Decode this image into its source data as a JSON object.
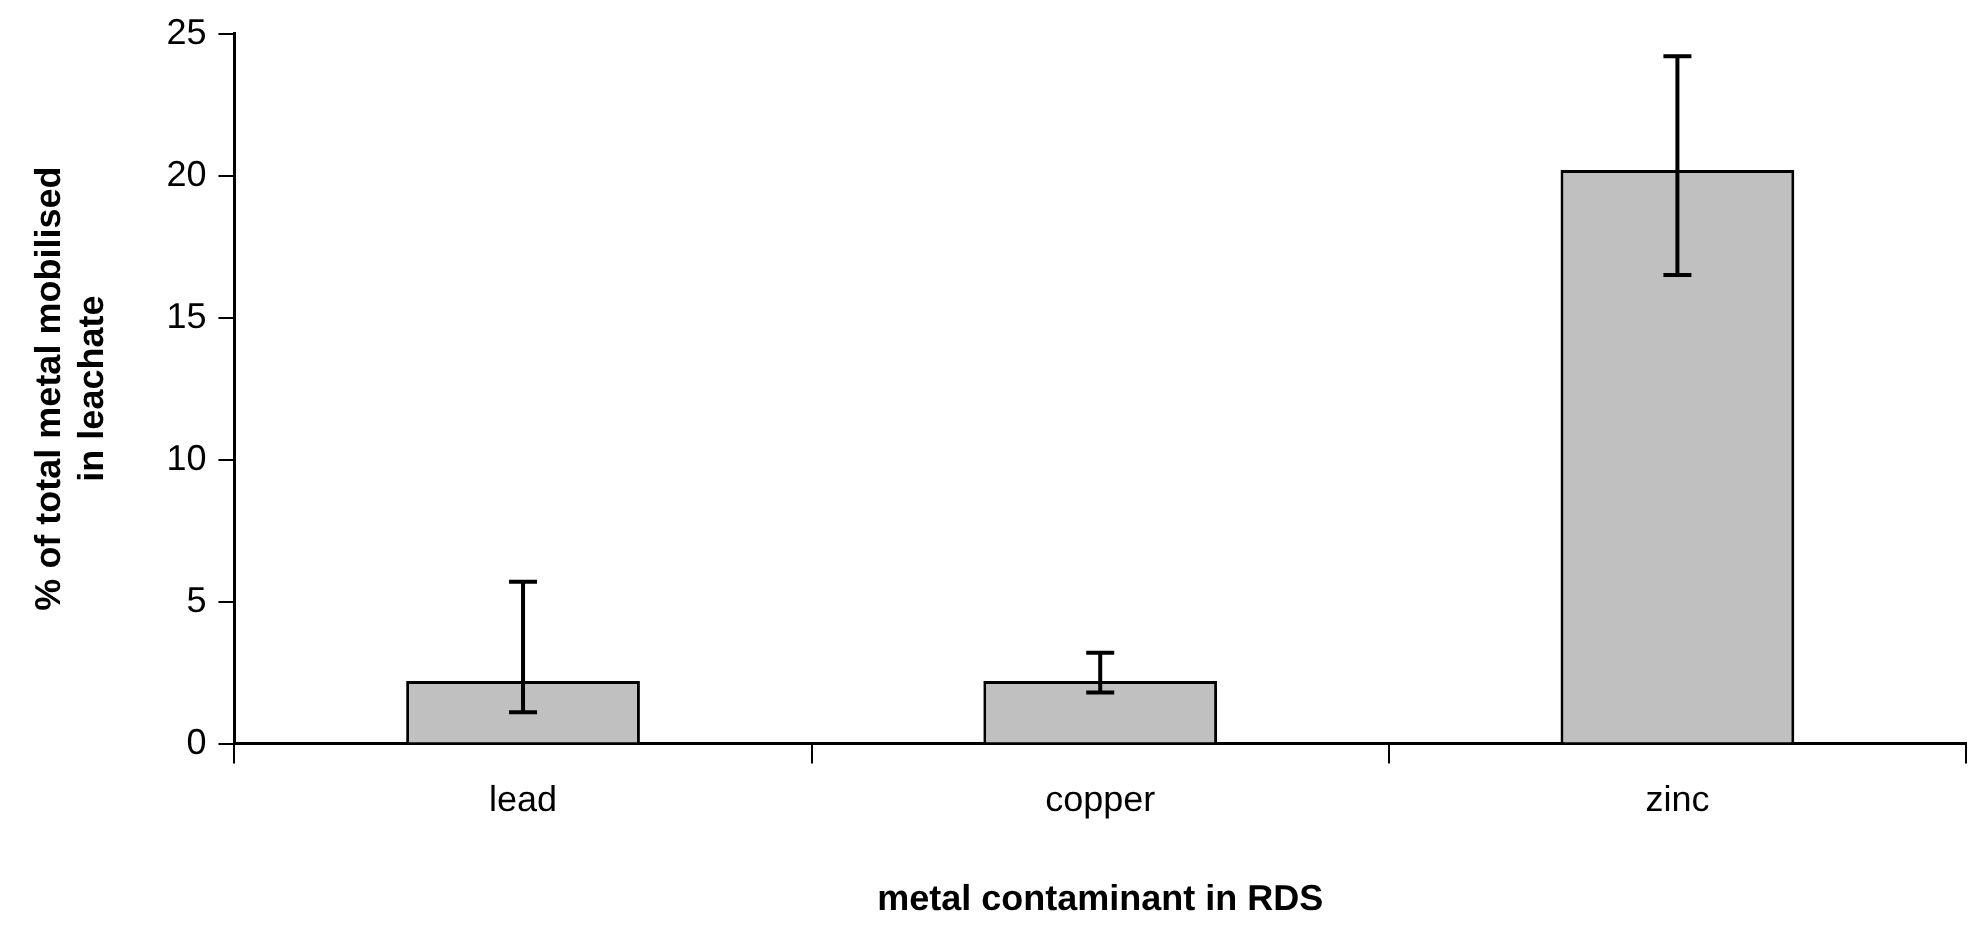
{
  "chart_data": {
    "type": "bar",
    "xlabel": "metal contaminant in RDS",
    "ylabel": "% of total metal mobilised\nin leachate",
    "categories": [
      "lead",
      "copper",
      "zinc"
    ],
    "values": [
      2.2,
      2.2,
      20.2
    ],
    "errors": [
      [
        1.1,
        5.7
      ],
      [
        1.8,
        3.2
      ],
      [
        16.5,
        24.2
      ]
    ],
    "color": "#c0c0c0",
    "ylim": [
      0,
      25
    ],
    "yticks": [
      0,
      5,
      10,
      15,
      20,
      25
    ],
    "grid": false,
    "legend": false
  }
}
